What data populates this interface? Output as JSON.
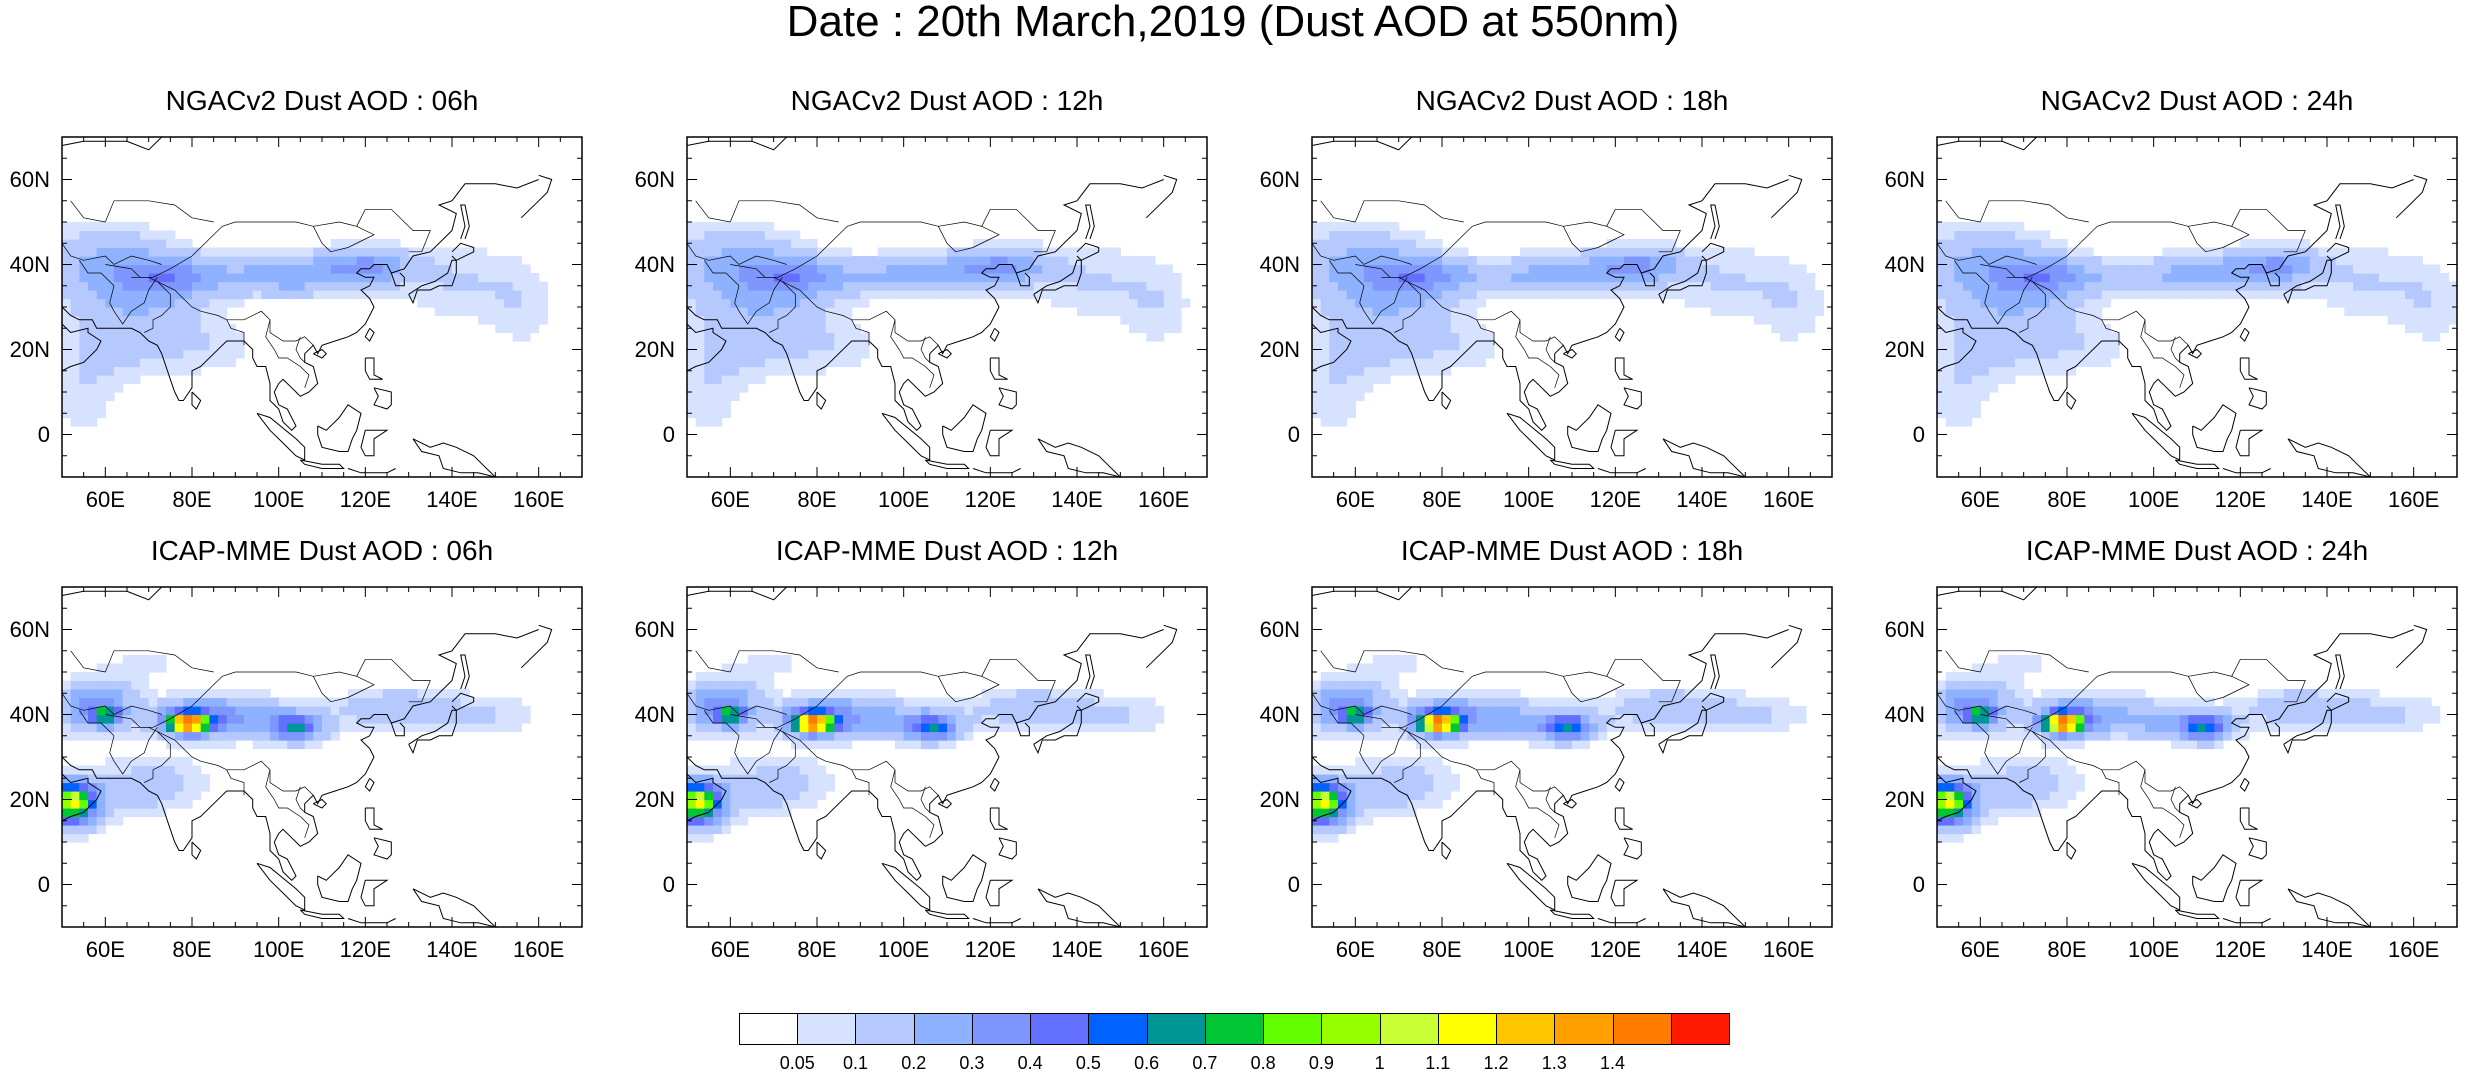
{
  "figure": {
    "title": "Date : 20th March,2019 (Dust AOD at 550nm)"
  },
  "map": {
    "lon_range": [
      50,
      170
    ],
    "lat_range": [
      -10,
      70
    ],
    "lon_ticks": [
      "60E",
      "80E",
      "100E",
      "120E",
      "140E",
      "160E"
    ],
    "lat_ticks": [
      "60N",
      "40N",
      "20N",
      "0"
    ]
  },
  "panels": [
    {
      "title": "NGACv2 Dust AOD : 06h",
      "model": "NGACv2"
    },
    {
      "title": "NGACv2 Dust AOD : 12h",
      "model": "NGACv2"
    },
    {
      "title": "NGACv2 Dust AOD : 18h",
      "model": "NGACv2"
    },
    {
      "title": "NGACv2 Dust AOD : 24h",
      "model": "NGACv2"
    },
    {
      "title": "ICAP-MME Dust AOD : 06h",
      "model": "ICAP"
    },
    {
      "title": "ICAP-MME Dust AOD : 12h",
      "model": "ICAP"
    },
    {
      "title": "ICAP-MME Dust AOD : 18h",
      "model": "ICAP"
    },
    {
      "title": "ICAP-MME Dust AOD : 24h",
      "model": "ICAP"
    }
  ],
  "colorbar": {
    "labels": [
      "0.05",
      "0.1",
      "0.2",
      "0.3",
      "0.4",
      "0.5",
      "0.6",
      "0.7",
      "0.8",
      "0.9",
      "1",
      "1.1",
      "1.2",
      "1.3",
      "1.4"
    ],
    "colors": [
      "#ffffff",
      "#d6e2ff",
      "#b5c9ff",
      "#8eb2ff",
      "#7f96ff",
      "#6370ff",
      "#0063ff",
      "#009696",
      "#00c633",
      "#63ff00",
      "#96ff00",
      "#c6ff33",
      "#ffff00",
      "#ffc600",
      "#ffa000",
      "#ff7c00",
      "#ff1900"
    ]
  }
}
